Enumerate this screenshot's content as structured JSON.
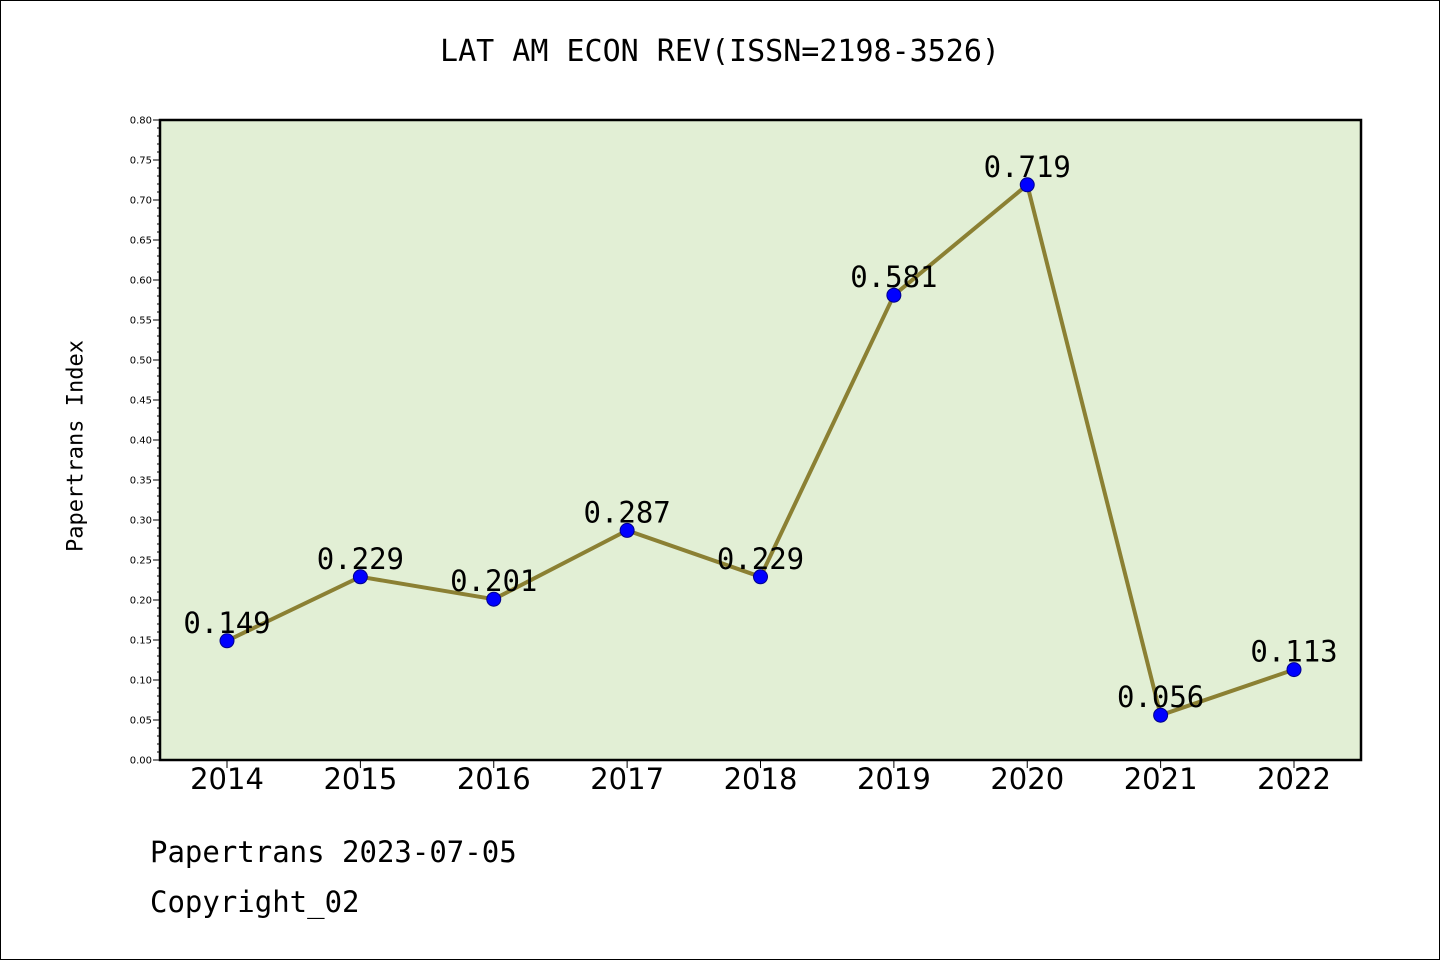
{
  "chart_data": {
    "type": "line",
    "title": "LAT AM ECON REV(ISSN=2198-3526)",
    "ylabel": "Papertrans Index",
    "xlabel": "",
    "categories": [
      "2014",
      "2015",
      "2016",
      "2017",
      "2018",
      "2019",
      "2020",
      "2021",
      "2022"
    ],
    "values": [
      0.149,
      0.229,
      0.201,
      0.287,
      0.229,
      0.581,
      0.719,
      0.056,
      0.113
    ],
    "data_labels": [
      "0.149",
      "0.229",
      "0.201",
      "0.287",
      "0.229",
      "0.581",
      "0.719",
      "0.056",
      "0.113"
    ],
    "ylim": [
      0,
      0.8
    ],
    "yticks": [
      "0.00",
      "0.05",
      "0.10",
      "0.15",
      "0.20",
      "0.25",
      "0.30",
      "0.35",
      "0.40",
      "0.45",
      "0.50",
      "0.55",
      "0.60",
      "0.65",
      "0.70",
      "0.75",
      "0.80"
    ],
    "grid": false,
    "colors": {
      "plot_background": "#e2efd5",
      "line": "#8b8033",
      "marker": "#0000ff"
    }
  },
  "footer": {
    "date_line": "Papertrans 2023-07-05",
    "copyright": "Copyright_02"
  }
}
